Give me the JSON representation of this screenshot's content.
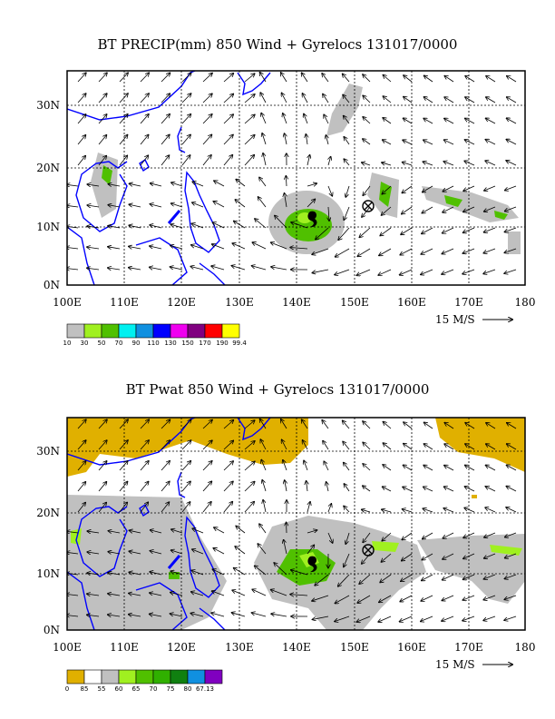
{
  "panels": [
    {
      "title": "BT PRECIP(mm) 850 Wind + Gyrelocs 131017/0000",
      "x_ticks": [
        "100E",
        "110E",
        "120E",
        "130E",
        "140E",
        "150E",
        "160E",
        "170E",
        "180"
      ],
      "y_ticks": [
        "30N",
        "20N",
        "10N",
        "0N"
      ],
      "vector_scale_label": "15 M/S",
      "legend": {
        "colors": [
          "#c0c0c0",
          "#a0f020",
          "#50c000",
          "#00f0f0",
          "#1090e0",
          "#0000ff",
          "#f000f0",
          "#800080",
          "#ff0000",
          "#ffff00"
        ],
        "labels": [
          "10",
          "30",
          "50",
          "70",
          "90",
          "110",
          "130",
          "150",
          "170",
          "190",
          "99.4"
        ]
      }
    },
    {
      "title": "BT Pwat 850 Wind + Gyrelocs 131017/0000",
      "x_ticks": [
        "100E",
        "110E",
        "120E",
        "130E",
        "140E",
        "150E",
        "160E",
        "170E",
        "180"
      ],
      "y_ticks": [
        "30N",
        "20N",
        "10N",
        "0N"
      ],
      "vector_scale_label": "15 M/S",
      "legend": {
        "colors": [
          "#e0b000",
          "#ffffff",
          "#c0c0c0",
          "#a0f020",
          "#50c000",
          "#30b000",
          "#108010",
          "#1090e0",
          "#8000c0"
        ],
        "labels": [
          "0",
          "85",
          "55",
          "60",
          "65",
          "70",
          "75",
          "80",
          "67.13"
        ]
      }
    }
  ],
  "colors": {
    "coast": "#0000ff",
    "frame": "#000000"
  }
}
